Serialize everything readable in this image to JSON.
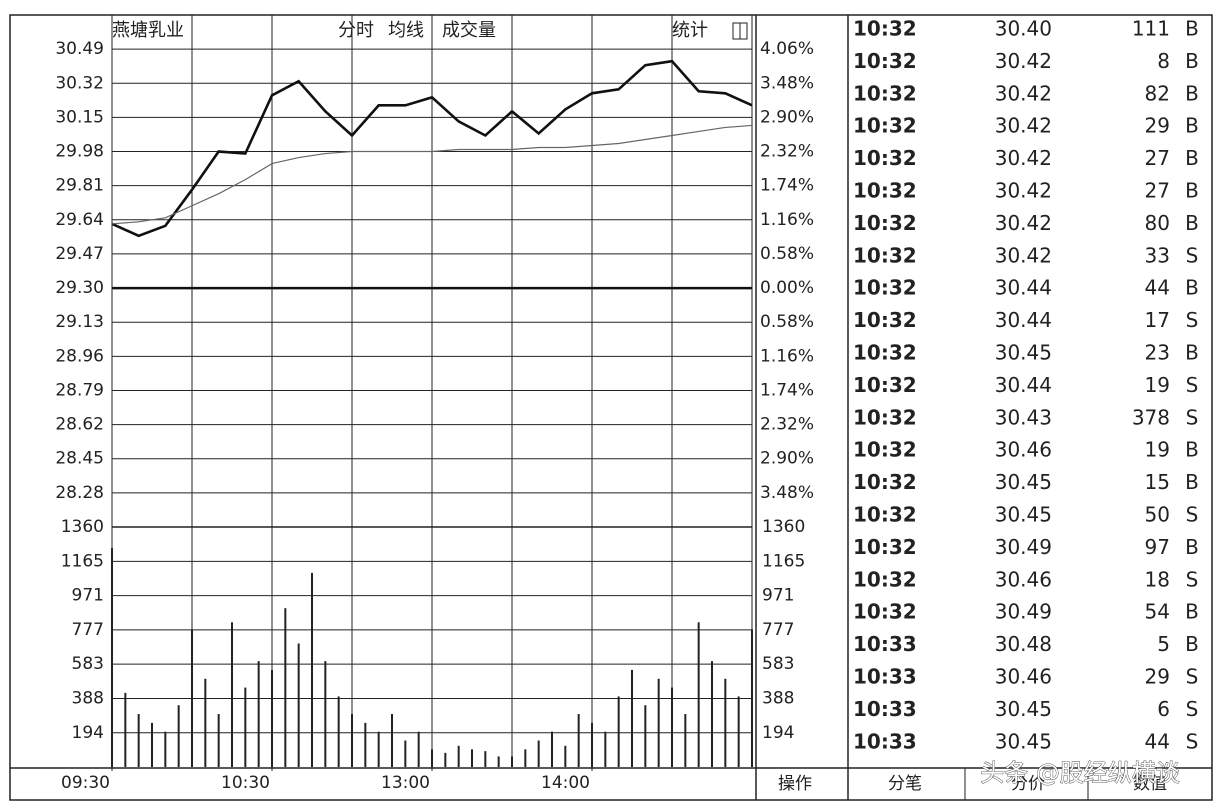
{
  "header": {
    "stock": "燕塘乳业",
    "stats": "统计"
  },
  "chart_data": [
    {
      "type": "line",
      "xlim": [
        0,
        240
      ],
      "xticks": [
        {
          "value": 0,
          "label": "09:30"
        },
        {
          "value": 60,
          "label": "10:30"
        },
        {
          "value": 120,
          "label": "13:00"
        },
        {
          "value": 180,
          "label": "14:00"
        }
      ],
      "ylim": [
        28.11,
        30.66
      ],
      "yticks": [
        30.49,
        30.32,
        30.15,
        29.98,
        29.81,
        29.64,
        29.47,
        {
          "value": 29.3,
          "label": "29.30"
        },
        29.13,
        28.96,
        28.79,
        28.62,
        28.45,
        28.28
      ],
      "y2lim": [
        -4.06,
        4.64
      ],
      "y2ticks": [
        {
          "value": 4.06,
          "label": "4.06%"
        },
        {
          "value": 3.48,
          "label": "3.48%"
        },
        {
          "value": 2.9,
          "label": "2.90%"
        },
        {
          "value": 2.32,
          "label": "2.32%"
        },
        {
          "value": 1.74,
          "label": "1.74%"
        },
        {
          "value": 1.16,
          "label": "1.16%"
        },
        {
          "value": 0.58,
          "label": "0.58%"
        },
        {
          "value": 0,
          "label": "0.00%"
        },
        {
          "value": -0.58,
          "label": "0.58%"
        },
        {
          "value": -1.16,
          "label": "1.16%"
        },
        {
          "value": -1.74,
          "label": "1.74%"
        },
        {
          "value": -2.32,
          "label": "2.32%"
        },
        {
          "value": -2.9,
          "label": "2.90%"
        },
        {
          "value": -3.48,
          "label": "3.48%"
        }
      ],
      "x": [
        0,
        10,
        20,
        30,
        40,
        50,
        60,
        70,
        80,
        90,
        100,
        110,
        120,
        130,
        140,
        150,
        160,
        170,
        180,
        190,
        200,
        210,
        220,
        230,
        240
      ],
      "series": [
        {
          "name": "分时",
          "color": "#111111",
          "values": [
            29.62,
            29.56,
            29.61,
            29.79,
            29.98,
            29.97,
            30.26,
            30.33,
            30.18,
            30.06,
            30.21,
            30.21,
            30.25,
            30.13,
            30.06,
            30.18,
            30.07,
            30.19,
            30.27,
            30.29,
            30.41,
            30.43,
            30.28,
            30.27,
            30.21
          ]
        },
        {
          "name": "均线",
          "color": "#666666",
          "values": [
            29.62,
            29.63,
            29.65,
            29.71,
            29.77,
            29.84,
            29.92,
            29.95,
            29.97,
            29.98,
            29.98,
            29.98,
            29.98,
            29.99,
            29.99,
            29.99,
            30.0,
            30.0,
            30.01,
            30.02,
            30.04,
            30.06,
            30.08,
            30.1,
            30.11
          ]
        }
      ]
    },
    {
      "type": "bar",
      "title": "成交量",
      "color": "#222222",
      "xlim": [
        0,
        240
      ],
      "ylim": [
        0,
        1360
      ],
      "yticks": [
        194,
        388,
        583,
        777,
        971,
        1165,
        1360
      ],
      "x": [
        0,
        5,
        10,
        15,
        20,
        25,
        30,
        35,
        40,
        45,
        50,
        55,
        60,
        65,
        70,
        75,
        80,
        85,
        90,
        95,
        100,
        105,
        110,
        115,
        120,
        125,
        130,
        135,
        140,
        145,
        150,
        155,
        160,
        165,
        170,
        175,
        180,
        185,
        190,
        195,
        200,
        205,
        210,
        215,
        220,
        225,
        230,
        235,
        240
      ],
      "values": [
        1240,
        420,
        300,
        250,
        200,
        350,
        780,
        500,
        300,
        820,
        450,
        600,
        550,
        900,
        700,
        1100,
        600,
        400,
        300,
        250,
        200,
        300,
        150,
        200,
        100,
        80,
        120,
        100,
        90,
        60,
        60,
        100,
        150,
        200,
        120,
        300,
        250,
        200,
        400,
        550,
        350,
        500,
        450,
        300,
        820,
        600,
        500,
        400,
        780
      ]
    }
  ],
  "trades": {
    "rows": [
      [
        "10:32",
        "30.40",
        111,
        "B"
      ],
      [
        "10:32",
        "30.42",
        8,
        "B"
      ],
      [
        "10:32",
        "30.42",
        82,
        "B"
      ],
      [
        "10:32",
        "30.42",
        29,
        "B"
      ],
      [
        "10:32",
        "30.42",
        27,
        "B"
      ],
      [
        "10:32",
        "30.42",
        27,
        "B"
      ],
      [
        "10:32",
        "30.42",
        80,
        "B"
      ],
      [
        "10:32",
        "30.42",
        33,
        "S"
      ],
      [
        "10:32",
        "30.44",
        44,
        "B"
      ],
      [
        "10:32",
        "30.44",
        17,
        "S"
      ],
      [
        "10:32",
        "30.45",
        23,
        "B"
      ],
      [
        "10:32",
        "30.44",
        19,
        "S"
      ],
      [
        "10:32",
        "30.43",
        378,
        "S"
      ],
      [
        "10:32",
        "30.46",
        19,
        "B"
      ],
      [
        "10:32",
        "30.45",
        15,
        "B"
      ],
      [
        "10:32",
        "30.45",
        50,
        "S"
      ],
      [
        "10:32",
        "30.49",
        97,
        "B"
      ],
      [
        "10:32",
        "30.46",
        18,
        "S"
      ],
      [
        "10:32",
        "30.49",
        54,
        "B"
      ],
      [
        "10:33",
        "30.48",
        5,
        "B"
      ],
      [
        "10:33",
        "30.46",
        29,
        "S"
      ],
      [
        "10:33",
        "30.45",
        6,
        "S"
      ],
      [
        "10:33",
        "30.45",
        44,
        "S"
      ]
    ]
  },
  "footer": {
    "tabs": [
      "操作",
      "分笔",
      "分价",
      "数值"
    ]
  },
  "watermark": "头条 @股经纵横谈"
}
